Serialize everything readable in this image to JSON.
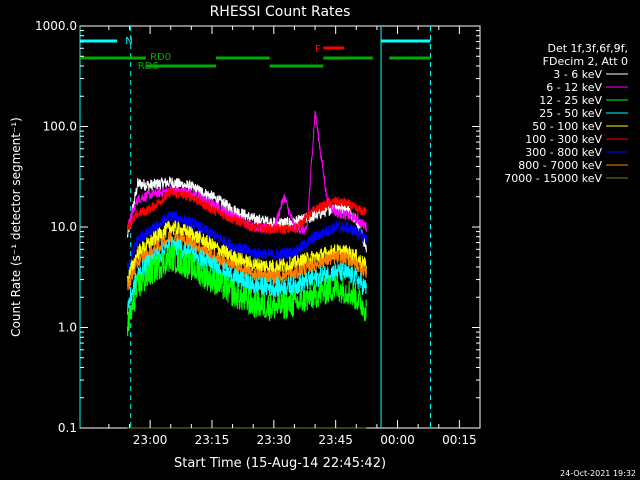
{
  "chart_data": {
    "type": "line",
    "title": "RHESSI Count Rates",
    "xlabel": "Start Time (15-Aug-14 22:45:42)",
    "ylabel": "Count Rate (s⁻¹ detector segment⁻¹)",
    "yscale": "log",
    "ylim": [
      0.1,
      1000
    ],
    "xlim_minutes_after_2245": [
      -2,
      95
    ],
    "x_ticks": [
      "23:00",
      "23:15",
      "23:30",
      "23:45",
      "00:00",
      "00:15"
    ],
    "y_ticks": [
      "0.1",
      "1.0",
      "10.0",
      "100.0",
      "1000.0"
    ],
    "legend_header": [
      "Det 1f,3f,6f,9f,",
      "FDecim 2, Att 0"
    ],
    "legend_position": "right",
    "timestamp": "24-Oct-2021 19:32",
    "data_window_minutes": [
      9.5,
      67.5
    ],
    "series": [
      {
        "name": "3 - 6 keV",
        "color": "#ffffff",
        "x": [
          9.5,
          12,
          15,
          20,
          25,
          30,
          35,
          40,
          45,
          50,
          55,
          60,
          63,
          65,
          67.5
        ],
        "y": [
          8,
          27,
          26,
          28,
          25,
          20,
          15,
          12,
          11,
          11,
          13,
          16,
          15,
          12,
          6
        ]
      },
      {
        "name": "6 - 12 keV",
        "color": "#ff00ff",
        "x": [
          9.5,
          12,
          15,
          20,
          25,
          30,
          35,
          40,
          45,
          47.5,
          50,
          53,
          55,
          58,
          60,
          63,
          65,
          67.5
        ],
        "y": [
          10,
          19,
          21,
          23,
          22,
          17,
          13,
          10,
          9.5,
          20,
          10,
          9,
          140,
          18,
          14,
          13,
          12,
          10
        ]
      },
      {
        "name": "12 - 25 keV",
        "color": "#00ff00",
        "x": [
          9.5,
          12,
          15,
          20,
          25,
          30,
          35,
          40,
          45,
          50,
          55,
          60,
          63,
          65,
          67.5
        ],
        "y": [
          1,
          2.5,
          3.5,
          5,
          4,
          3,
          2.2,
          1.7,
          1.6,
          1.7,
          2.1,
          2.5,
          2.3,
          2,
          1.5
        ]
      },
      {
        "name": "25 - 50 keV",
        "color": "#00ffff",
        "x": [
          9.5,
          12,
          15,
          20,
          25,
          30,
          35,
          40,
          45,
          50,
          55,
          60,
          63,
          65,
          67.5
        ],
        "y": [
          1.6,
          3.3,
          4.5,
          6.5,
          5.5,
          4.2,
          3.2,
          2.6,
          2.5,
          2.6,
          3.1,
          3.6,
          3.4,
          3.1,
          2.4
        ]
      },
      {
        "name": "50 - 100 keV",
        "color": "#ffff00",
        "x": [
          9.5,
          12,
          15,
          20,
          25,
          30,
          35,
          40,
          45,
          50,
          55,
          60,
          63,
          65,
          67.5
        ],
        "y": [
          3,
          5.5,
          7,
          10,
          8.5,
          6.5,
          5,
          4.2,
          4,
          4.3,
          5,
          5.7,
          5.5,
          5,
          4
        ]
      },
      {
        "name": "100 - 300 keV",
        "color": "#ff0000",
        "x": [
          9.5,
          12,
          15,
          20,
          25,
          30,
          35,
          40,
          45,
          50,
          55,
          60,
          63,
          65,
          67.5
        ],
        "y": [
          10,
          13.5,
          15,
          22,
          20,
          15,
          12,
          10,
          9.5,
          9.5,
          15,
          18,
          17,
          15,
          14
        ]
      },
      {
        "name": "300 - 800 keV",
        "color": "#0000ff",
        "x": [
          9.5,
          12,
          15,
          20,
          25,
          30,
          35,
          40,
          45,
          50,
          55,
          60,
          63,
          65,
          67.5
        ],
        "y": [
          4,
          7.5,
          9,
          13,
          11,
          8.5,
          6.5,
          5.5,
          5.3,
          5.6,
          8,
          10,
          9.8,
          9,
          7.5
        ]
      },
      {
        "name": "800 - 7000 keV",
        "color": "#ff8000",
        "x": [
          9.5,
          12,
          15,
          20,
          25,
          30,
          35,
          40,
          45,
          50,
          55,
          60,
          63,
          65,
          67.5
        ],
        "y": [
          2.5,
          4.5,
          5.5,
          8,
          7,
          5.2,
          4,
          3.4,
          3.2,
          3.4,
          4.3,
          5,
          4.8,
          4.3,
          3.5
        ]
      },
      {
        "name": "7000 - 15000 keV",
        "color": "#808000",
        "x": [
          9.5,
          67.5
        ],
        "y": [
          0.1,
          0.1
        ]
      }
    ],
    "flags": [
      {
        "label": "N",
        "color": "#00ffff",
        "segments": [
          [
            -2,
            7
          ],
          [
            71,
            83
          ]
        ]
      },
      {
        "label": "RD0",
        "color": "#00aa00",
        "segments": [
          [
            -2,
            14
          ],
          [
            31,
            44
          ],
          [
            57,
            69
          ],
          [
            73,
            83
          ]
        ]
      },
      {
        "label": "RD6",
        "color": "#00aa00",
        "segments": [
          [
            14,
            31
          ],
          [
            44,
            57
          ]
        ]
      },
      {
        "label": "F",
        "color": "#ff0000",
        "segments": [
          [
            57,
            62
          ]
        ]
      }
    ],
    "vlines": [
      {
        "x": -2,
        "color": "#00ffff",
        "style": "solid"
      },
      {
        "x": 10.3,
        "color": "#00ffff",
        "style": "dashed"
      },
      {
        "x": 71,
        "color": "#00ffff",
        "style": "solid"
      },
      {
        "x": 83,
        "color": "#00ffff",
        "style": "dashed"
      }
    ]
  }
}
